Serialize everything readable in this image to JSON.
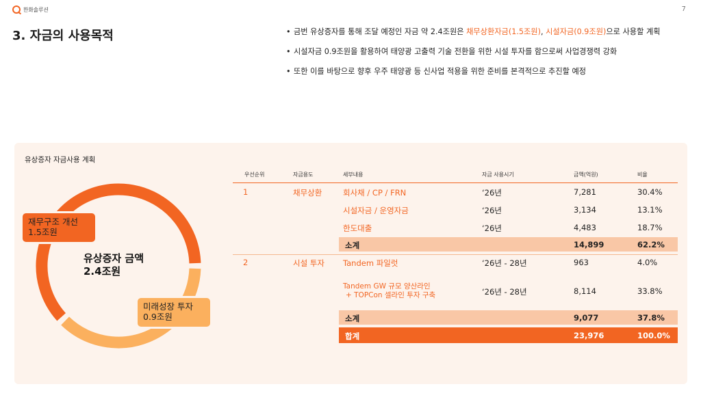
{
  "header": {
    "company": "한화솔루션",
    "page_number": "7",
    "title": "3. 자금의 사용목적"
  },
  "bullets": [
    {
      "pre": "금번 유상증자를 통해 조달 예정인 자금 약 2.4조원은 ",
      "hl1": "채무상환자금(1.5조원)",
      "mid": ", ",
      "hl2": "시설자금(0.9조원)",
      "post": "으로 사용할 계획"
    },
    {
      "text": "시설자금 0.9조원을 활용하여 태양광 고출력 기술 전환을 위한 시설 투자를 함으로써 사업경쟁력 강화"
    },
    {
      "text": "또한 이를 바탕으로 향후 우주 태양광  등 신사업 적용을 위한 준비를 본격적으로 추진할 예정"
    }
  ],
  "panel": {
    "title": "유상증자 자금사용 계획",
    "donut": {
      "center_line1": "유상증자 금액",
      "center_line2": "2.4조원",
      "debt_label": "재무구조 개선",
      "debt_amount": "1.5조원",
      "growth_label": "미래성장 투자",
      "growth_amount": "0.9조원",
      "debt_share": 0.622,
      "growth_share": 0.378,
      "colors": {
        "debt": "#f26522",
        "growth": "#fbb05e"
      }
    },
    "table": {
      "headers": [
        "우선순위",
        "자금용도",
        "세부내용",
        "자금 사용시기",
        "금액(억원)",
        "비율"
      ],
      "group1": {
        "priority": "1",
        "use": "채무상환",
        "rows": [
          {
            "detail": "회사채 / CP / FRN",
            "timing": "‘26년",
            "amount": "7,281",
            "ratio": "30.4%"
          },
          {
            "detail": "시설자금 / 운영자금",
            "timing": "‘26년",
            "amount": "3,134",
            "ratio": "13.1%"
          },
          {
            "detail": "한도대출",
            "timing": "‘26년",
            "amount": "4,483",
            "ratio": "18.7%"
          }
        ],
        "subtotal": {
          "label": "소계",
          "amount": "14,899",
          "ratio": "62.2%"
        }
      },
      "group2": {
        "priority": "2",
        "use": "시설 투자",
        "rows": [
          {
            "detail": "Tandem 파일럿",
            "timing": "‘26년 - 28년",
            "amount": "963",
            "ratio": "4.0%"
          },
          {
            "detail_line1": "Tandem GW 규모 양산라인",
            "detail_line2": "+ TOPCon 셀라인 투자 구축",
            "timing": "‘26년 - 28년",
            "amount": "8,114",
            "ratio": "33.8%"
          }
        ],
        "subtotal": {
          "label": "소계",
          "amount": "9,077",
          "ratio": "37.8%"
        }
      },
      "total": {
        "label": "합계",
        "amount": "23,976",
        "ratio": "100.0%"
      }
    }
  }
}
